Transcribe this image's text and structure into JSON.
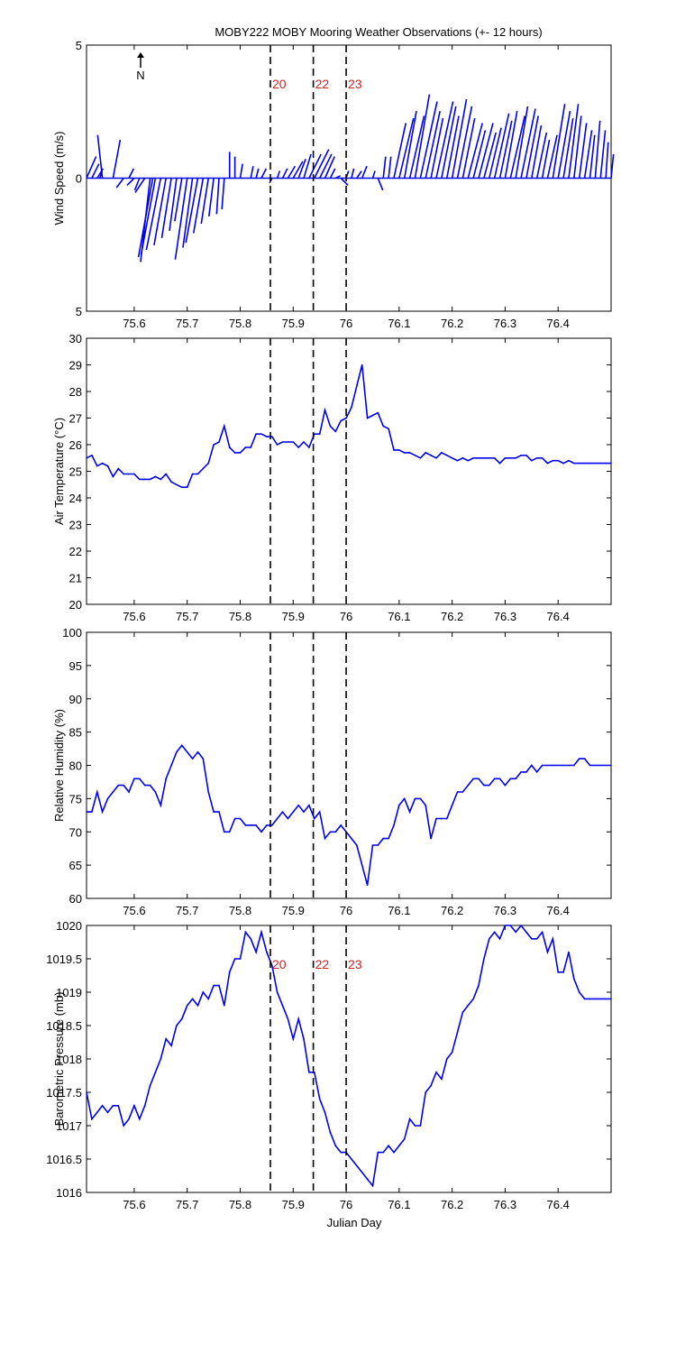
{
  "title": "MOBY222 MOBY Mooring Weather Observations (+- 12 hours)",
  "xlabel": "Julian Day",
  "north_label": "N",
  "colors": {
    "series": "#0000ee",
    "event_label": "#cc2222",
    "axes": "#000000"
  },
  "chart_data": [
    {
      "type": "quiver",
      "ylabel": "Wind Speed (m/s)",
      "xlim": [
        75.51,
        76.5
      ],
      "ylim": [
        -5,
        5
      ],
      "yticks": [
        5,
        0,
        5
      ],
      "xticks": [
        75.6,
        75.7,
        75.8,
        75.9,
        76,
        76.1,
        76.2,
        76.3,
        76.4
      ],
      "vectors": [
        [
          75.51,
          0.4,
          0.9
        ],
        [
          75.52,
          0.3,
          0.6
        ],
        [
          75.53,
          0.25,
          0.4
        ],
        [
          75.535,
          0.1,
          0.3
        ],
        [
          75.54,
          -0.2,
          1.8
        ],
        [
          75.56,
          0.3,
          1.6
        ],
        [
          75.58,
          -0.3,
          -0.4
        ],
        [
          75.59,
          0.2,
          0.4
        ],
        [
          75.6,
          -0.3,
          -0.3
        ],
        [
          75.61,
          -0.2,
          -0.5
        ],
        [
          75.62,
          -0.4,
          -0.6
        ],
        [
          75.63,
          -0.4,
          -3.5
        ],
        [
          75.635,
          -0.6,
          -3.3
        ],
        [
          75.64,
          -0.6,
          -3.2
        ],
        [
          75.65,
          -0.6,
          -3.0
        ],
        [
          75.66,
          -0.5,
          -2.8
        ],
        [
          75.67,
          -0.4,
          -2.5
        ],
        [
          75.68,
          -0.3,
          -2.2
        ],
        [
          75.69,
          -0.3,
          -1.8
        ],
        [
          75.7,
          -0.5,
          -3.4
        ],
        [
          75.71,
          -0.4,
          -2.9
        ],
        [
          75.72,
          -0.5,
          -2.7
        ],
        [
          75.73,
          -0.4,
          -2.3
        ],
        [
          75.74,
          -0.3,
          -1.9
        ],
        [
          75.75,
          -0.2,
          -1.6
        ],
        [
          75.76,
          -0.1,
          -1.5
        ],
        [
          75.77,
          -0.1,
          -1.3
        ],
        [
          75.78,
          0.0,
          1.1
        ],
        [
          75.79,
          0.0,
          0.9
        ],
        [
          75.8,
          0.1,
          0.6
        ],
        [
          75.82,
          0.1,
          0.5
        ],
        [
          75.83,
          0.1,
          0.4
        ],
        [
          75.84,
          0.2,
          0.4
        ],
        [
          75.86,
          -0.1,
          -0.2
        ],
        [
          75.87,
          0.1,
          0.3
        ],
        [
          75.88,
          0.2,
          0.4
        ],
        [
          75.89,
          0.3,
          0.5
        ],
        [
          75.9,
          0.4,
          0.7
        ],
        [
          75.91,
          0.3,
          0.8
        ],
        [
          75.92,
          0.3,
          1.0
        ],
        [
          75.93,
          0.5,
          1.0
        ],
        [
          75.94,
          0.6,
          1.2
        ],
        [
          75.95,
          0.5,
          1.0
        ],
        [
          75.96,
          0.4,
          0.9
        ],
        [
          75.97,
          0.2,
          0.4
        ],
        [
          75.98,
          0.2,
          0.1
        ],
        [
          75.99,
          0.3,
          -0.3
        ],
        [
          76.0,
          0.1,
          0.3
        ],
        [
          76.01,
          0.1,
          0.4
        ],
        [
          76.02,
          0.2,
          0.3
        ],
        [
          76.03,
          0.2,
          0.5
        ],
        [
          76.05,
          0.1,
          0.3
        ],
        [
          76.06,
          0.2,
          -0.5
        ],
        [
          76.07,
          0.1,
          0.9
        ],
        [
          76.08,
          0.1,
          0.9
        ],
        [
          76.09,
          0.5,
          2.3
        ],
        [
          76.1,
          0.6,
          2.5
        ],
        [
          76.11,
          0.5,
          2.8
        ],
        [
          76.12,
          0.6,
          2.6
        ],
        [
          76.13,
          0.6,
          3.5
        ],
        [
          76.14,
          0.7,
          3.2
        ],
        [
          76.15,
          0.6,
          2.8
        ],
        [
          76.16,
          0.5,
          2.5
        ],
        [
          76.17,
          0.7,
          3.2
        ],
        [
          76.18,
          0.6,
          3.0
        ],
        [
          76.19,
          0.5,
          2.6
        ],
        [
          76.2,
          0.6,
          3.3
        ],
        [
          76.21,
          0.6,
          3.0
        ],
        [
          76.22,
          0.5,
          2.5
        ],
        [
          76.23,
          0.6,
          2.3
        ],
        [
          76.24,
          0.5,
          2.0
        ],
        [
          76.25,
          0.6,
          2.3
        ],
        [
          76.26,
          0.5,
          1.9
        ],
        [
          76.27,
          0.5,
          2.1
        ],
        [
          76.28,
          0.6,
          2.7
        ],
        [
          76.29,
          0.5,
          2.4
        ],
        [
          76.3,
          0.5,
          2.8
        ],
        [
          76.31,
          0.6,
          2.6
        ],
        [
          76.32,
          0.5,
          3.0
        ],
        [
          76.33,
          0.6,
          2.9
        ],
        [
          76.34,
          0.5,
          2.6
        ],
        [
          76.35,
          0.4,
          2.2
        ],
        [
          76.36,
          0.4,
          1.9
        ],
        [
          76.37,
          0.3,
          1.6
        ],
        [
          76.38,
          0.4,
          1.8
        ],
        [
          76.39,
          0.5,
          3.1
        ],
        [
          76.4,
          0.5,
          2.8
        ],
        [
          76.41,
          0.4,
          2.5
        ],
        [
          76.42,
          0.4,
          3.1
        ],
        [
          76.43,
          0.3,
          2.6
        ],
        [
          76.44,
          0.3,
          2.3
        ],
        [
          76.45,
          0.3,
          2.0
        ],
        [
          76.46,
          0.2,
          1.8
        ],
        [
          76.47,
          0.2,
          2.4
        ],
        [
          76.48,
          0.2,
          2.0
        ],
        [
          76.49,
          0.1,
          1.5
        ],
        [
          76.5,
          0.1,
          1.0
        ]
      ]
    },
    {
      "type": "line",
      "ylabel": "Air Temperature (°C)",
      "xlim": [
        75.51,
        76.5
      ],
      "ylim": [
        20,
        30
      ],
      "yticks": [
        20,
        21,
        22,
        23,
        24,
        25,
        26,
        27,
        28,
        29,
        30
      ],
      "xticks": [
        75.6,
        75.7,
        75.8,
        75.9,
        76,
        76.1,
        76.2,
        76.3,
        76.4
      ],
      "x": [
        75.51,
        75.52,
        75.53,
        75.54,
        75.55,
        75.56,
        75.57,
        75.58,
        75.59,
        75.6,
        75.61,
        75.62,
        75.63,
        75.64,
        75.65,
        75.66,
        75.67,
        75.68,
        75.69,
        75.7,
        75.71,
        75.72,
        75.73,
        75.74,
        75.75,
        75.76,
        75.77,
        75.78,
        75.79,
        75.8,
        75.81,
        75.82,
        75.83,
        75.84,
        75.85,
        75.86,
        75.87,
        75.88,
        75.89,
        75.9,
        75.91,
        75.92,
        75.93,
        75.94,
        75.95,
        75.96,
        75.97,
        75.98,
        75.99,
        76.0,
        76.01,
        76.02,
        76.03,
        76.04,
        76.05,
        76.06,
        76.07,
        76.08,
        76.09,
        76.1,
        76.11,
        76.12,
        76.13,
        76.14,
        76.15,
        76.16,
        76.17,
        76.18,
        76.19,
        76.2,
        76.21,
        76.22,
        76.23,
        76.24,
        76.25,
        76.26,
        76.27,
        76.28,
        76.29,
        76.3,
        76.31,
        76.32,
        76.33,
        76.34,
        76.35,
        76.36,
        76.37,
        76.38,
        76.39,
        76.4,
        76.41,
        76.42,
        76.43,
        76.44,
        76.45,
        76.46,
        76.47,
        76.48,
        76.49,
        76.5
      ],
      "y": [
        25.5,
        25.6,
        25.2,
        25.3,
        25.2,
        24.8,
        25.1,
        24.9,
        24.9,
        24.9,
        24.7,
        24.7,
        24.7,
        24.8,
        24.7,
        24.9,
        24.6,
        24.5,
        24.4,
        24.4,
        24.9,
        24.9,
        25.1,
        25.3,
        26.0,
        26.1,
        26.7,
        25.9,
        25.7,
        25.7,
        25.9,
        25.9,
        26.4,
        26.4,
        26.3,
        26.3,
        26.0,
        26.1,
        26.1,
        26.1,
        25.9,
        26.1,
        25.9,
        26.4,
        26.4,
        27.3,
        26.7,
        26.5,
        26.9,
        27.0,
        27.4,
        28.2,
        29.0,
        27.0,
        27.1,
        27.2,
        26.7,
        26.6,
        25.8,
        25.8,
        25.7,
        25.7,
        25.6,
        25.5,
        25.7,
        25.6,
        25.5,
        25.7,
        25.6,
        25.5,
        25.4,
        25.5,
        25.4,
        25.5,
        25.5,
        25.5,
        25.5,
        25.5,
        25.3,
        25.5,
        25.5,
        25.5,
        25.6,
        25.6,
        25.4,
        25.5,
        25.5,
        25.3,
        25.4,
        25.4,
        25.3,
        25.4,
        25.3,
        25.3,
        25.3,
        25.3,
        25.3,
        25.3,
        25.3,
        25.3
      ]
    },
    {
      "type": "line",
      "ylabel": "Relative Humidity (%)",
      "xlim": [
        75.51,
        76.5
      ],
      "ylim": [
        60,
        100
      ],
      "yticks": [
        60,
        65,
        70,
        75,
        80,
        85,
        90,
        95,
        100
      ],
      "xticks": [
        75.6,
        75.7,
        75.8,
        75.9,
        76,
        76.1,
        76.2,
        76.3,
        76.4
      ],
      "x": [
        75.51,
        75.52,
        75.53,
        75.54,
        75.55,
        75.56,
        75.57,
        75.58,
        75.59,
        75.6,
        75.61,
        75.62,
        75.63,
        75.64,
        75.65,
        75.66,
        75.67,
        75.68,
        75.69,
        75.7,
        75.71,
        75.72,
        75.73,
        75.74,
        75.75,
        75.76,
        75.77,
        75.78,
        75.79,
        75.8,
        75.81,
        75.82,
        75.83,
        75.84,
        75.85,
        75.86,
        75.87,
        75.88,
        75.89,
        75.9,
        75.91,
        75.92,
        75.93,
        75.94,
        75.95,
        75.96,
        75.97,
        75.98,
        75.99,
        76.0,
        76.01,
        76.02,
        76.03,
        76.04,
        76.05,
        76.06,
        76.07,
        76.08,
        76.09,
        76.1,
        76.11,
        76.12,
        76.13,
        76.14,
        76.15,
        76.16,
        76.17,
        76.18,
        76.19,
        76.2,
        76.21,
        76.22,
        76.23,
        76.24,
        76.25,
        76.26,
        76.27,
        76.28,
        76.29,
        76.3,
        76.31,
        76.32,
        76.33,
        76.34,
        76.35,
        76.36,
        76.37,
        76.38,
        76.39,
        76.4,
        76.41,
        76.42,
        76.43,
        76.44,
        76.45,
        76.46,
        76.47,
        76.48,
        76.49,
        76.5
      ],
      "y": [
        73,
        73,
        76,
        73,
        75,
        76,
        77,
        77,
        76,
        78,
        78,
        77,
        77,
        76,
        74,
        78,
        80,
        82,
        83,
        82,
        81,
        82,
        81,
        76,
        73,
        73,
        70,
        70,
        72,
        72,
        71,
        71,
        71,
        70,
        71,
        71,
        72,
        73,
        72,
        73,
        74,
        73,
        74,
        72,
        73,
        69,
        70,
        70,
        71,
        70,
        69,
        68,
        65,
        62,
        68,
        68,
        69,
        69,
        71,
        74,
        75,
        73,
        75,
        75,
        74,
        69,
        72,
        72,
        72,
        74,
        76,
        76,
        77,
        78,
        78,
        77,
        77,
        78,
        78,
        77,
        78,
        78,
        79,
        79,
        80,
        79,
        80,
        80,
        80,
        80,
        80,
        80,
        80,
        81,
        81,
        80,
        80,
        80,
        80,
        80
      ]
    },
    {
      "type": "line",
      "ylabel": "Barometric Pressure (mb)",
      "xlim": [
        75.51,
        76.5
      ],
      "ylim": [
        1016,
        1020
      ],
      "yticks": [
        1016,
        1016.5,
        1017,
        1017.5,
        1018,
        1018.5,
        1019,
        1019.5,
        1020
      ],
      "xticks": [
        75.6,
        75.7,
        75.8,
        75.9,
        76,
        76.1,
        76.2,
        76.3,
        76.4
      ],
      "x": [
        75.51,
        75.52,
        75.53,
        75.54,
        75.55,
        75.56,
        75.57,
        75.58,
        75.59,
        75.6,
        75.61,
        75.62,
        75.63,
        75.64,
        75.65,
        75.66,
        75.67,
        75.68,
        75.69,
        75.7,
        75.71,
        75.72,
        75.73,
        75.74,
        75.75,
        75.76,
        75.77,
        75.78,
        75.79,
        75.8,
        75.81,
        75.82,
        75.83,
        75.84,
        75.85,
        75.86,
        75.87,
        75.88,
        75.89,
        75.9,
        75.91,
        75.92,
        75.93,
        75.94,
        75.95,
        75.96,
        75.97,
        75.98,
        75.99,
        76.0,
        76.01,
        76.02,
        76.03,
        76.04,
        76.05,
        76.06,
        76.07,
        76.08,
        76.09,
        76.1,
        76.11,
        76.12,
        76.13,
        76.14,
        76.15,
        76.16,
        76.17,
        76.18,
        76.19,
        76.2,
        76.21,
        76.22,
        76.23,
        76.24,
        76.25,
        76.26,
        76.27,
        76.28,
        76.29,
        76.3,
        76.31,
        76.32,
        76.33,
        76.34,
        76.35,
        76.36,
        76.37,
        76.38,
        76.39,
        76.4,
        76.41,
        76.42,
        76.43,
        76.44,
        76.45,
        76.46,
        76.47,
        76.48,
        76.49,
        76.5
      ],
      "y": [
        1017.5,
        1017.1,
        1017.2,
        1017.3,
        1017.2,
        1017.3,
        1017.3,
        1017.0,
        1017.1,
        1017.3,
        1017.1,
        1017.3,
        1017.6,
        1017.8,
        1018.0,
        1018.3,
        1018.2,
        1018.5,
        1018.6,
        1018.8,
        1018.9,
        1018.8,
        1019.0,
        1018.9,
        1019.1,
        1019.1,
        1018.8,
        1019.3,
        1019.5,
        1019.5,
        1019.9,
        1019.8,
        1019.6,
        1019.9,
        1019.6,
        1019.4,
        1019.0,
        1018.8,
        1018.6,
        1018.3,
        1018.6,
        1018.3,
        1017.8,
        1017.8,
        1017.4,
        1017.2,
        1016.9,
        1016.7,
        1016.6,
        1016.6,
        1016.5,
        1016.4,
        1016.3,
        1016.2,
        1016.1,
        1016.6,
        1016.6,
        1016.7,
        1016.6,
        1016.7,
        1016.8,
        1017.1,
        1017.0,
        1017.0,
        1017.5,
        1017.6,
        1017.8,
        1017.7,
        1018.0,
        1018.1,
        1018.4,
        1018.7,
        1018.8,
        1018.9,
        1019.1,
        1019.5,
        1019.8,
        1019.9,
        1019.8,
        1020.0,
        1020.0,
        1019.9,
        1020.0,
        1019.9,
        1019.8,
        1019.8,
        1019.9,
        1019.6,
        1019.8,
        1019.3,
        1019.3,
        1019.6,
        1019.2,
        1019.0,
        1018.9,
        1018.9,
        1018.9,
        1018.9,
        1018.9,
        1018.9
      ]
    }
  ],
  "events": [
    {
      "label": "20",
      "x": 75.857
    },
    {
      "label": "22",
      "x": 75.938
    },
    {
      "label": "23",
      "x": 76.0
    }
  ]
}
